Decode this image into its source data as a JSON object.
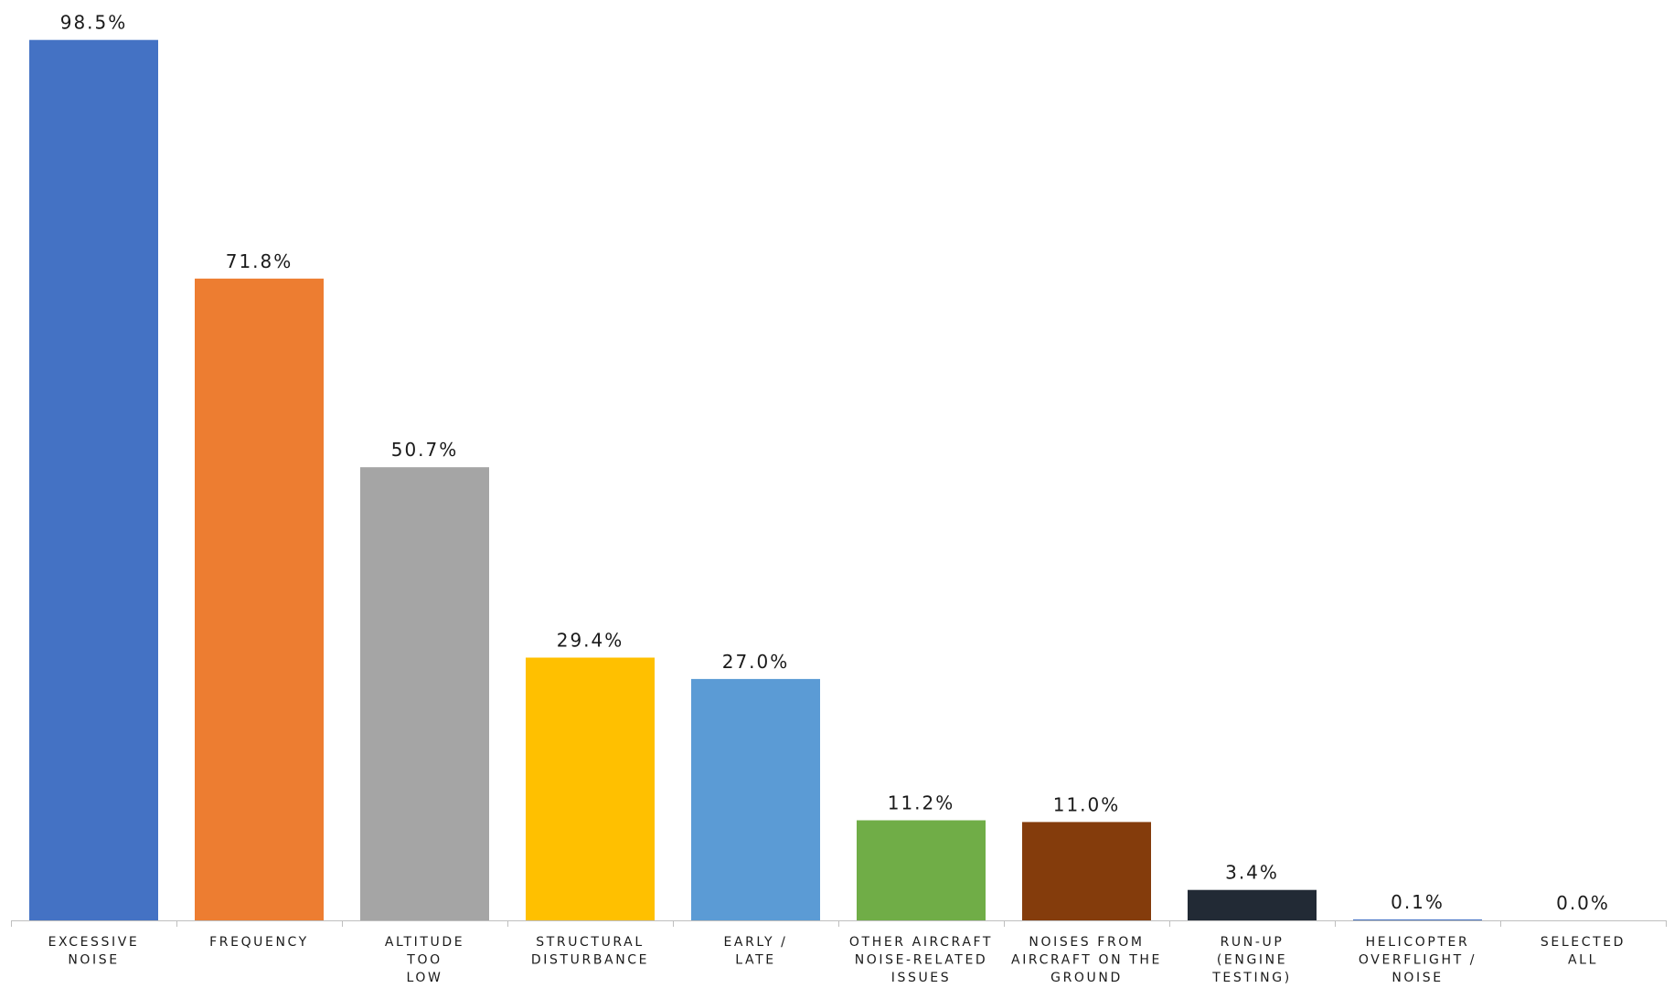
{
  "chart_data": {
    "type": "bar",
    "title": "",
    "xlabel": "",
    "ylabel": "",
    "ylim": [
      0,
      100
    ],
    "grid": false,
    "legend": "none",
    "categories": [
      [
        "EXCESSIVE",
        "NOISE"
      ],
      [
        "FREQUENCY"
      ],
      [
        "ALTITUDE",
        "TOO",
        "LOW"
      ],
      [
        "STRUCTURAL",
        "DISTURBANCE"
      ],
      [
        "EARLY /",
        "LATE"
      ],
      [
        "OTHER AIRCRAFT",
        "NOISE-RELATED",
        "ISSUES"
      ],
      [
        "NOISES FROM",
        "AIRCRAFT ON THE",
        "GROUND"
      ],
      [
        "RUN-UP",
        "(ENGINE",
        "TESTING)"
      ],
      [
        "HELICOPTER",
        "OVERFLIGHT /",
        "NOISE"
      ],
      [
        "SELECTED",
        "ALL"
      ]
    ],
    "values": [
      98.5,
      71.8,
      50.7,
      29.4,
      27.0,
      11.2,
      11.0,
      3.4,
      0.1,
      0.0
    ],
    "value_labels": [
      "98.5%",
      "71.8%",
      "50.7%",
      "29.4%",
      "27.0%",
      "11.2%",
      "11.0%",
      "3.4%",
      "0.1%",
      "0.0%"
    ],
    "colors": [
      "#4472C4",
      "#ED7D31",
      "#A5A5A5",
      "#FFC000",
      "#5B9BD5",
      "#70AD47",
      "#843C0C",
      "#222A35",
      "#4472C4",
      "#ED7D31"
    ],
    "axis_color": "#bfbfbf"
  }
}
